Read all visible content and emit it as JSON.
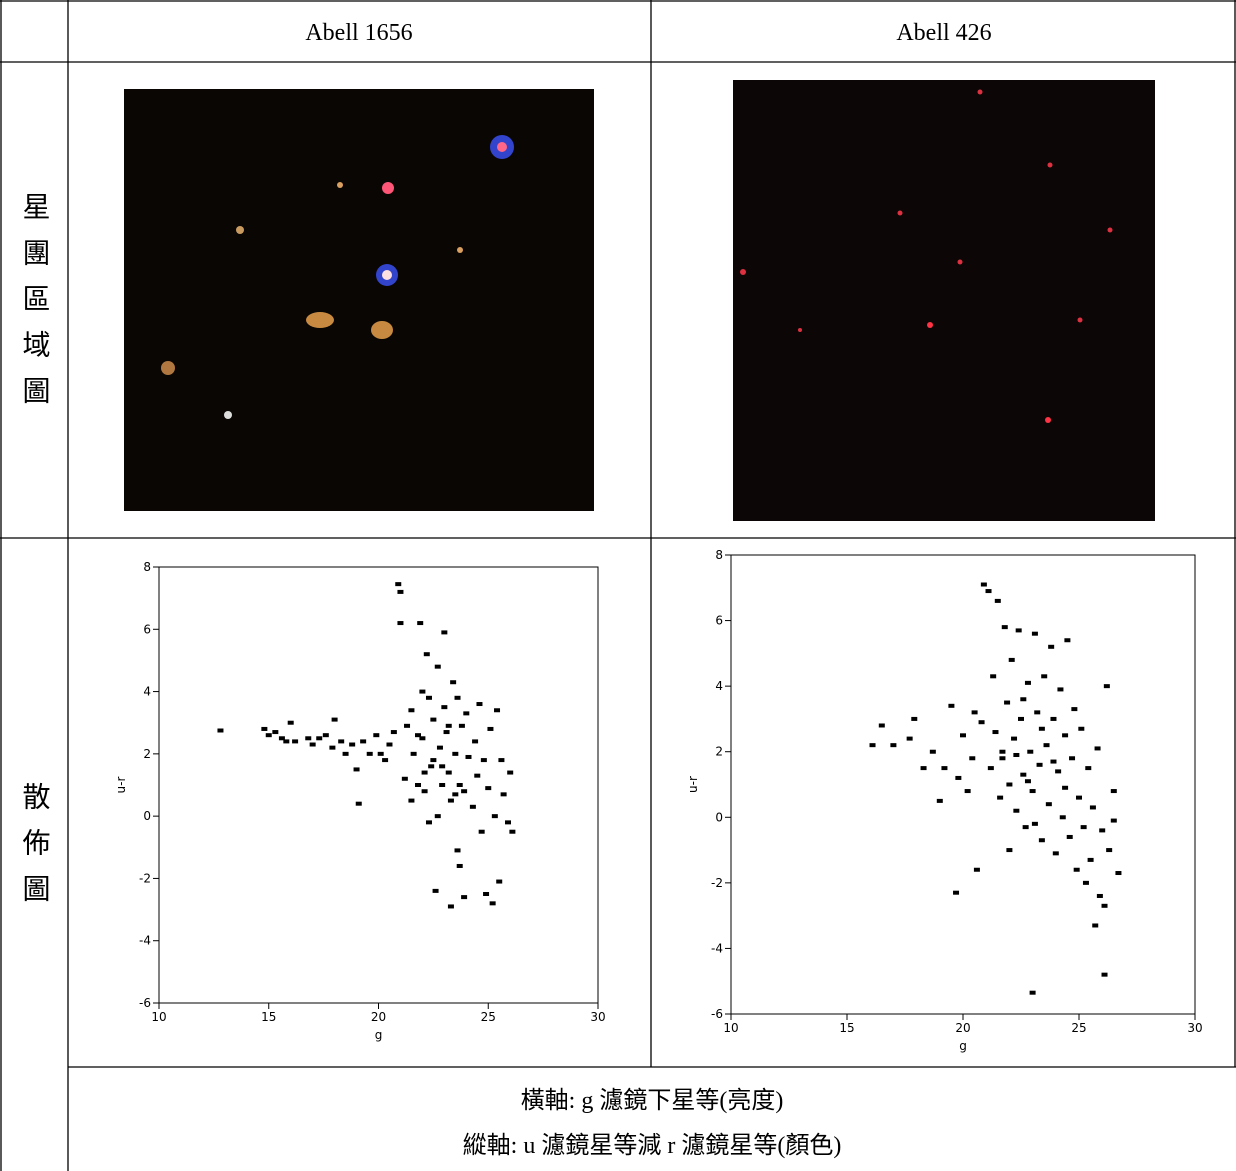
{
  "table": {
    "header": [
      "Abell 1656",
      "Abell 426"
    ],
    "row_labels": [
      "星團區域圖",
      "散佈圖"
    ],
    "caption": [
      "橫軸: g 濾鏡下星等(亮度)",
      "縱軸: u 濾鏡星等減 r 濾鏡星等(顏色)"
    ]
  },
  "chart_data": [
    {
      "type": "scatter",
      "xlabel": "g",
      "ylabel": "u-r",
      "color": "#000000",
      "xlim": [
        10,
        30
      ],
      "ylim": [
        -6,
        8
      ],
      "xticks": [
        10,
        15,
        20,
        25,
        30
      ],
      "yticks": [
        -6,
        -4,
        -2,
        0,
        2,
        4,
        6,
        8
      ],
      "x": [
        12.8,
        14.8,
        15.0,
        15.3,
        15.6,
        15.8,
        16.0,
        16.2,
        16.8,
        17.0,
        17.3,
        17.6,
        17.9,
        18.0,
        18.3,
        18.5,
        18.8,
        19.0,
        19.1,
        19.3,
        19.6,
        19.9,
        20.1,
        20.3,
        20.5,
        20.7,
        20.9,
        21.0,
        21.0,
        21.2,
        21.3,
        21.5,
        21.6,
        21.8,
        21.9,
        22.0,
        22.0,
        22.1,
        22.2,
        22.3,
        22.4,
        22.5,
        22.5,
        22.6,
        22.7,
        22.8,
        22.9,
        23.0,
        23.0,
        23.1,
        23.2,
        23.3,
        23.3,
        23.4,
        23.5,
        23.6,
        23.6,
        23.7,
        23.7,
        23.8,
        23.9,
        23.9,
        24.0,
        24.1,
        24.3,
        24.4,
        24.5,
        24.6,
        24.7,
        24.8,
        24.9,
        25.0,
        25.1,
        25.2,
        25.3,
        25.4,
        25.5,
        25.6,
        25.7,
        25.9,
        26.0,
        26.1,
        21.5,
        22.7,
        23.2,
        22.3,
        21.8,
        22.9,
        23.5,
        22.1
      ],
      "values": [
        2.75,
        2.8,
        2.6,
        2.7,
        2.5,
        2.4,
        3.0,
        2.4,
        2.5,
        2.3,
        2.5,
        2.6,
        2.2,
        3.1,
        2.4,
        2.0,
        2.3,
        1.5,
        0.4,
        2.4,
        2.0,
        2.6,
        2.0,
        1.8,
        2.3,
        2.7,
        7.45,
        7.2,
        6.2,
        1.2,
        2.9,
        3.4,
        2.0,
        1.0,
        6.2,
        4.0,
        2.5,
        0.8,
        5.2,
        -0.2,
        1.6,
        3.1,
        1.8,
        -2.4,
        4.8,
        2.2,
        1.0,
        5.9,
        3.5,
        2.7,
        1.4,
        -2.9,
        0.5,
        4.3,
        2.0,
        -1.1,
        3.8,
        -1.6,
        1.0,
        2.9,
        -2.6,
        0.8,
        3.3,
        1.9,
        0.3,
        2.4,
        1.3,
        3.6,
        -0.5,
        1.8,
        -2.5,
        0.9,
        2.8,
        -2.8,
        0.0,
        3.4,
        -2.1,
        1.8,
        0.7,
        -0.2,
        1.4,
        -0.5,
        0.5,
        0.0,
        2.9,
        3.8,
        2.6,
        1.6,
        0.7,
        1.4
      ]
    },
    {
      "type": "scatter",
      "xlabel": "g",
      "ylabel": "u-r",
      "color": "#000000",
      "xlim": [
        10,
        30
      ],
      "ylim": [
        -6,
        8
      ],
      "xticks": [
        10,
        15,
        20,
        25,
        30
      ],
      "yticks": [
        -6,
        -4,
        -2,
        0,
        2,
        4,
        6,
        8
      ],
      "x": [
        16.1,
        16.5,
        17.0,
        17.7,
        17.9,
        18.3,
        18.7,
        19.0,
        19.2,
        19.5,
        19.7,
        19.8,
        20.0,
        20.2,
        20.4,
        20.5,
        20.6,
        20.8,
        20.9,
        21.1,
        21.2,
        21.3,
        21.5,
        21.6,
        21.7,
        21.8,
        21.9,
        22.0,
        22.0,
        22.1,
        22.2,
        22.3,
        22.4,
        22.5,
        22.6,
        22.7,
        22.8,
        22.9,
        23.0,
        23.0,
        23.1,
        23.2,
        23.3,
        23.4,
        23.5,
        23.6,
        23.7,
        23.8,
        23.9,
        24.0,
        24.1,
        24.2,
        24.3,
        24.4,
        24.5,
        24.6,
        24.7,
        24.8,
        24.9,
        25.0,
        25.1,
        25.2,
        25.3,
        25.4,
        25.5,
        25.6,
        25.7,
        25.8,
        25.9,
        26.0,
        26.1,
        26.1,
        26.2,
        26.3,
        26.5,
        26.5,
        26.7,
        22.3,
        23.4,
        22.8,
        21.4,
        23.9,
        22.6,
        21.7,
        24.4,
        23.1
      ],
      "values": [
        2.2,
        2.8,
        2.2,
        2.4,
        3.0,
        1.5,
        2.0,
        0.5,
        1.5,
        3.4,
        -2.3,
        1.2,
        2.5,
        0.8,
        1.8,
        3.2,
        -1.6,
        2.9,
        7.1,
        6.9,
        1.5,
        4.3,
        6.6,
        0.6,
        2.0,
        5.8,
        3.5,
        -1.0,
        1.0,
        4.8,
        2.4,
        0.2,
        5.7,
        3.0,
        1.3,
        -0.3,
        4.1,
        2.0,
        -5.35,
        0.8,
        5.6,
        3.2,
        1.6,
        -0.7,
        4.3,
        2.2,
        0.4,
        5.2,
        3.0,
        -1.1,
        1.4,
        3.9,
        0.0,
        2.5,
        5.4,
        -0.6,
        1.8,
        3.3,
        -1.6,
        0.6,
        2.7,
        -0.3,
        -2.0,
        1.5,
        -1.3,
        0.3,
        -3.3,
        2.1,
        -2.4,
        -0.4,
        -4.8,
        -2.7,
        4.0,
        -1.0,
        0.8,
        -0.1,
        -1.7,
        1.9,
        2.7,
        1.1,
        2.6,
        1.7,
        3.6,
        1.8,
        0.9,
        -0.2
      ]
    }
  ]
}
